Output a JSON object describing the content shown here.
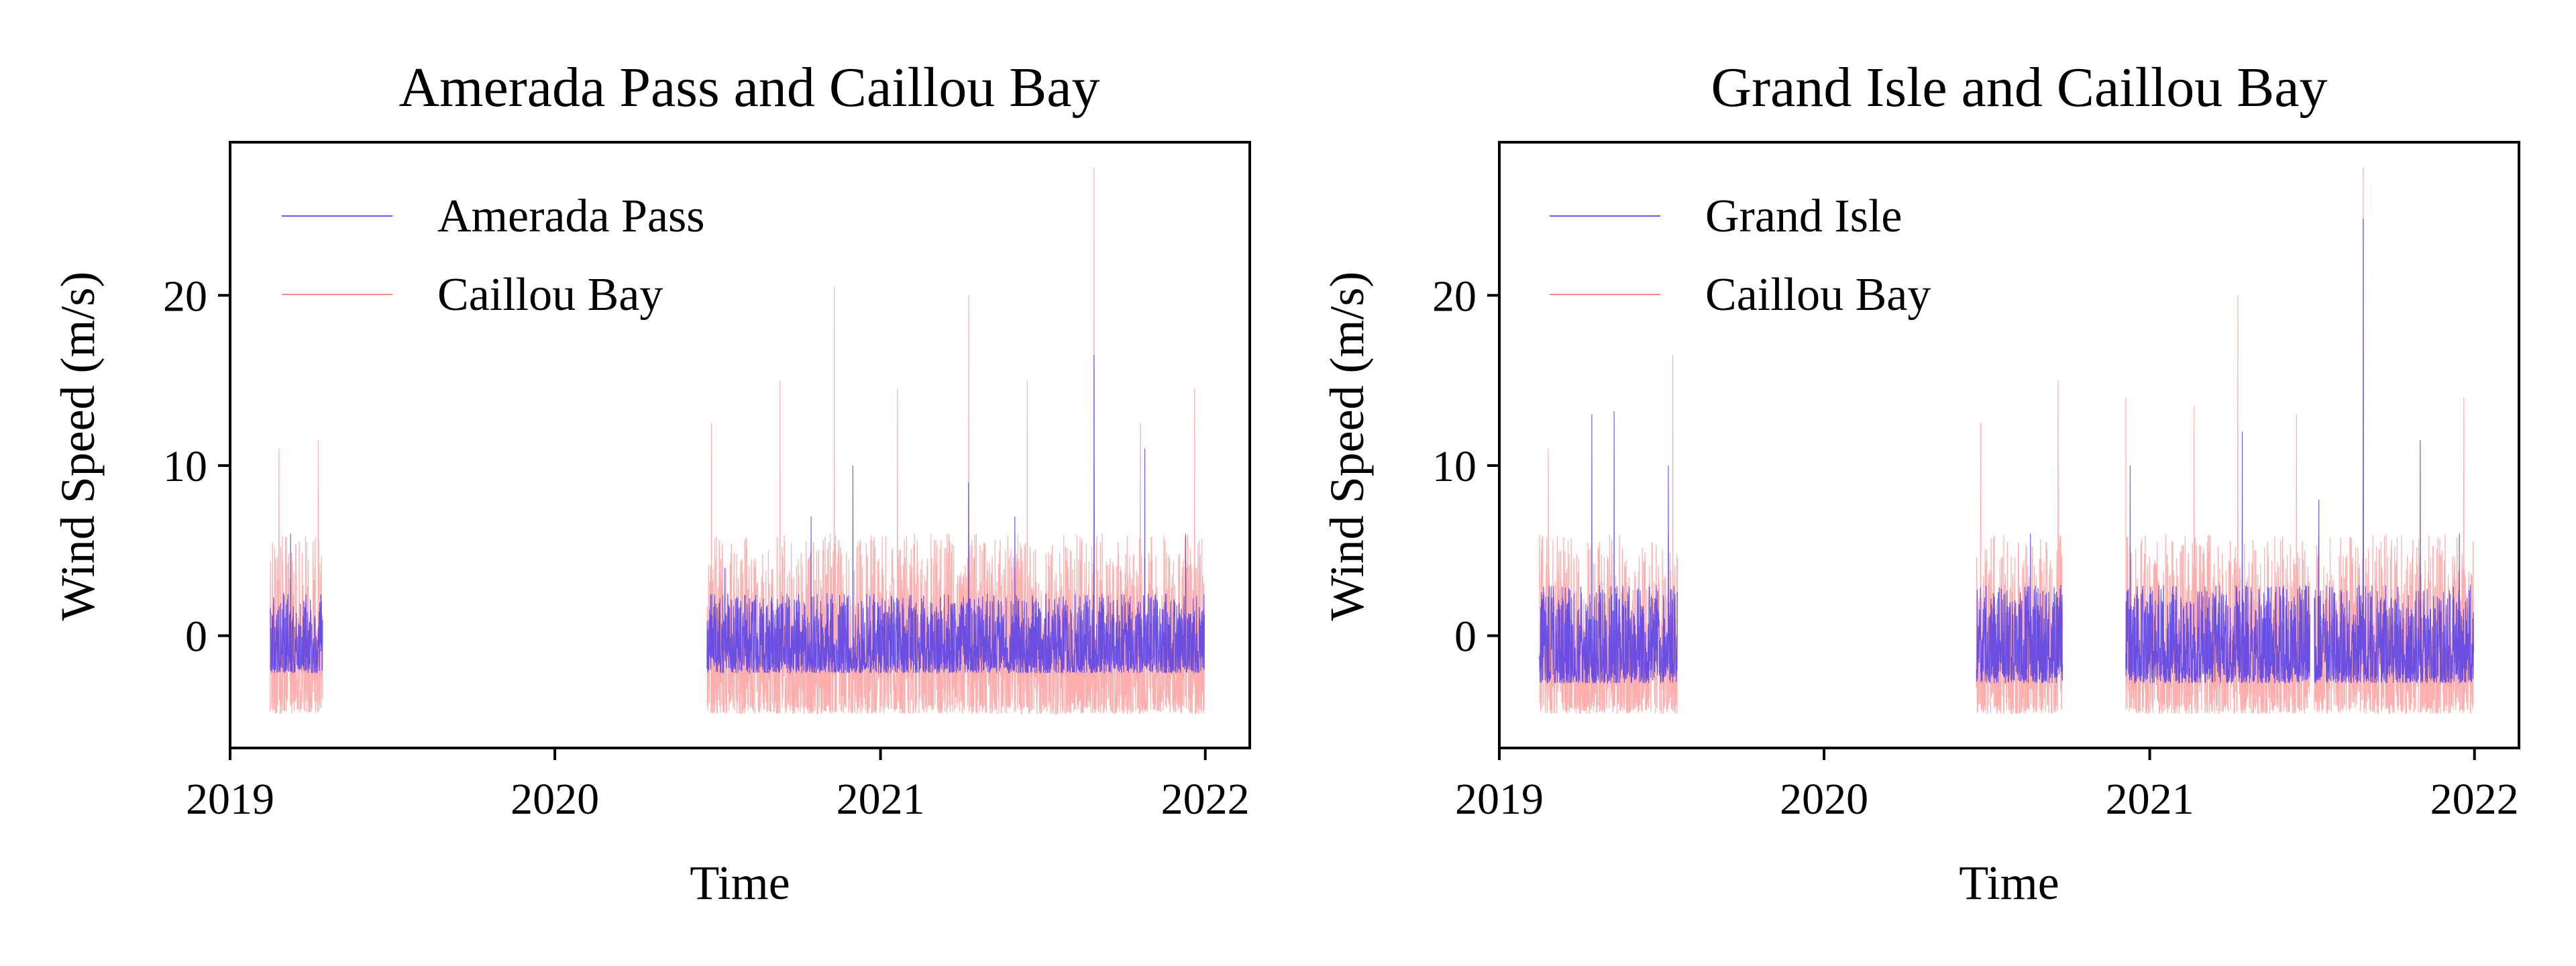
{
  "chart_data": [
    {
      "type": "line",
      "title": "Amerada Pass and Caillou Bay",
      "xlabel": "Time",
      "ylabel": "Wind Speed (m/s)",
      "xlim": [
        "2019-01-01",
        "2022-02-20"
      ],
      "ylim": [
        -6.6,
        29
      ],
      "x_ticks": [
        "2019",
        "2020",
        "2021",
        "2022"
      ],
      "y_ticks": [
        0,
        10,
        20
      ],
      "legend": "upper-left",
      "grid": false,
      "series": [
        {
          "name": "Amerada Pass",
          "color": "#3a2ef0",
          "typical_range": [
            -2.2,
            2.5
          ],
          "segments": [
            [
              "2019-02-15",
              "2019-04-15"
            ],
            [
              "2020-06-20",
              "2021-12-31"
            ]
          ],
          "peaks": [
            {
              "date": "2019-03-10",
              "value": 6
            },
            {
              "date": "2020-07-10",
              "value": 4
            },
            {
              "date": "2020-10-15",
              "value": 7
            },
            {
              "date": "2020-12-01",
              "value": 10
            },
            {
              "date": "2021-04-10",
              "value": 9
            },
            {
              "date": "2021-06-01",
              "value": 7
            },
            {
              "date": "2021-08-29",
              "value": 16.5
            },
            {
              "date": "2021-10-25",
              "value": 11
            },
            {
              "date": "2021-12-10",
              "value": 6
            }
          ]
        },
        {
          "name": "Caillou Bay",
          "color": "#ff6b6b",
          "typical_range": [
            -4.6,
            6
          ],
          "segments": [
            [
              "2019-02-15",
              "2019-04-15"
            ],
            [
              "2020-06-20",
              "2021-12-31"
            ]
          ],
          "peaks": [
            {
              "date": "2019-02-25",
              "value": 11
            },
            {
              "date": "2019-04-10",
              "value": 11.5
            },
            {
              "date": "2020-06-25",
              "value": 12.5
            },
            {
              "date": "2020-09-10",
              "value": 15
            },
            {
              "date": "2020-11-10",
              "value": 20.5
            },
            {
              "date": "2021-01-20",
              "value": 14.5
            },
            {
              "date": "2021-04-10",
              "value": 20
            },
            {
              "date": "2021-06-15",
              "value": 15
            },
            {
              "date": "2021-08-29",
              "value": 27.5
            },
            {
              "date": "2021-10-20",
              "value": 12.5
            },
            {
              "date": "2021-12-20",
              "value": 14.5
            }
          ]
        }
      ]
    },
    {
      "type": "line",
      "title": "Grand Isle and Caillou Bay",
      "xlabel": "Time",
      "ylabel": "Wind Speed (m/s)",
      "xlim": [
        "2019-01-01",
        "2022-02-20"
      ],
      "ylim": [
        -6.6,
        29
      ],
      "x_ticks": [
        "2019",
        "2020",
        "2021",
        "2022"
      ],
      "y_ticks": [
        0,
        10,
        20
      ],
      "legend": "upper-left",
      "grid": false,
      "series": [
        {
          "name": "Grand Isle",
          "color": "#3a2ef0",
          "typical_range": [
            -2.8,
            3
          ],
          "segments": [
            [
              "2019-02-15",
              "2019-07-20"
            ],
            [
              "2020-06-20",
              "2020-09-25"
            ],
            [
              "2020-12-05",
              "2021-06-30"
            ],
            [
              "2021-07-05",
              "2021-12-31"
            ]
          ],
          "peaks": [
            {
              "date": "2019-04-15",
              "value": 13
            },
            {
              "date": "2019-05-10",
              "value": 13.2
            },
            {
              "date": "2019-07-10",
              "value": 10
            },
            {
              "date": "2020-08-20",
              "value": 6
            },
            {
              "date": "2020-12-10",
              "value": 10
            },
            {
              "date": "2021-04-15",
              "value": 12
            },
            {
              "date": "2021-07-10",
              "value": 8
            },
            {
              "date": "2021-08-29",
              "value": 24.5
            },
            {
              "date": "2021-11-01",
              "value": 11.5
            },
            {
              "date": "2021-12-15",
              "value": 6
            }
          ]
        },
        {
          "name": "Caillou Bay",
          "color": "#ff6b6b",
          "typical_range": [
            -4.6,
            6
          ],
          "segments": [
            [
              "2019-02-15",
              "2019-07-20"
            ],
            [
              "2020-06-20",
              "2020-09-25"
            ],
            [
              "2020-12-05",
              "2021-06-30"
            ],
            [
              "2021-07-05",
              "2021-12-31"
            ]
          ],
          "peaks": [
            {
              "date": "2019-02-25",
              "value": 11
            },
            {
              "date": "2019-07-15",
              "value": 16.5
            },
            {
              "date": "2020-06-25",
              "value": 12.5
            },
            {
              "date": "2020-09-20",
              "value": 15
            },
            {
              "date": "2020-12-05",
              "value": 14
            },
            {
              "date": "2021-02-20",
              "value": 13.5
            },
            {
              "date": "2021-04-10",
              "value": 20
            },
            {
              "date": "2021-06-15",
              "value": 13
            },
            {
              "date": "2021-08-29",
              "value": 27.5
            },
            {
              "date": "2021-12-20",
              "value": 14
            }
          ]
        }
      ]
    }
  ]
}
